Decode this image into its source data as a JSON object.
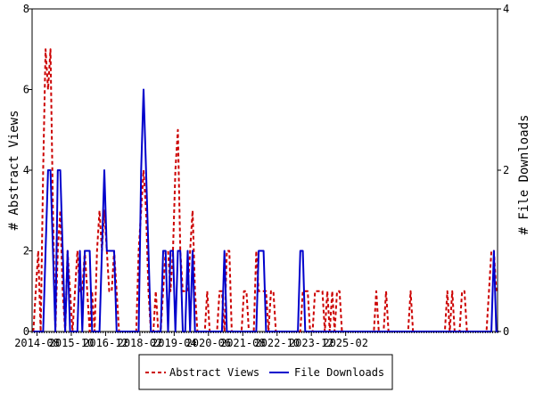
{
  "chart_data": {
    "type": "line",
    "title": "",
    "xlabel": "",
    "ylabel_left": "# Abstract Views",
    "ylabel_right": "# File Downloads",
    "ylim_left": [
      0,
      8
    ],
    "ylim_right": [
      0,
      4
    ],
    "yticks_left": [
      "0",
      "2",
      "4",
      "6",
      "8"
    ],
    "yticks_right": [
      "0",
      "2",
      "4"
    ],
    "x_tick_labels": [
      "2014-08",
      "2015-10",
      "2016-12",
      "2018-02",
      "2019-04",
      "2020-06",
      "2021-08",
      "2022-10",
      "2023-12",
      "2025-02"
    ],
    "x_start": "2014-06",
    "legend_position": "bottom",
    "colors": {
      "abstract_views": "#cc0000",
      "file_downloads": "#0000cc"
    },
    "series": [
      {
        "name": "Abstract Views",
        "axis": "left",
        "style": "dashed",
        "values": [
          0,
          1,
          2,
          0,
          4,
          7,
          6,
          7,
          3,
          0,
          2,
          3,
          1,
          0,
          2,
          1,
          0,
          1,
          2,
          1,
          1,
          2,
          1,
          0,
          1,
          0,
          2,
          3,
          2,
          3,
          2,
          1,
          1,
          2,
          1,
          0,
          0,
          0,
          0,
          0,
          0,
          0,
          0,
          2,
          3,
          4,
          3,
          1,
          0,
          0,
          1,
          0,
          0,
          1,
          2,
          2,
          1,
          2,
          4,
          5,
          2,
          1,
          1,
          1,
          2,
          3,
          1,
          0,
          0,
          0,
          0,
          1,
          0,
          0,
          0,
          0,
          1,
          1,
          0,
          2,
          2,
          0,
          0,
          0,
          0,
          0,
          1,
          1,
          0,
          0,
          0,
          2,
          1,
          1,
          1,
          1,
          0,
          1,
          1,
          0,
          0,
          0,
          0,
          0,
          0,
          0,
          0,
          0,
          0,
          0,
          1,
          1,
          1,
          0,
          0,
          1,
          1,
          1,
          1,
          0,
          1,
          0,
          1,
          0,
          1,
          1,
          0,
          0,
          0,
          0,
          0,
          0,
          0,
          0,
          0,
          0,
          0,
          0,
          0,
          0,
          1,
          0,
          0,
          0,
          1,
          0,
          0,
          0,
          0,
          0,
          0,
          0,
          0,
          0,
          1,
          0,
          0,
          0,
          0,
          0,
          0,
          0,
          0,
          0,
          0,
          0,
          0,
          0,
          0,
          1,
          0,
          1,
          0,
          0,
          0,
          1,
          1,
          0,
          0,
          0,
          0,
          0,
          0,
          0,
          0,
          0,
          1,
          2,
          2,
          1
        ]
      },
      {
        "name": "File Downloads",
        "axis": "right",
        "style": "solid",
        "values": [
          0,
          0,
          0,
          0,
          0,
          1,
          2,
          2,
          1,
          0,
          2,
          2,
          1,
          0,
          1,
          0,
          0,
          0,
          0,
          1,
          0,
          1,
          1,
          1,
          0,
          0,
          0,
          0,
          1,
          2,
          1,
          1,
          1,
          1,
          0,
          0,
          0,
          0,
          0,
          0,
          0,
          0,
          0,
          0,
          2,
          3,
          2,
          1,
          0,
          0,
          0,
          0,
          0,
          1,
          1,
          0,
          1,
          1,
          0,
          1,
          1,
          0,
          0,
          1,
          0,
          1,
          0,
          0,
          0,
          0,
          0,
          0,
          0,
          0,
          0,
          0,
          0,
          0,
          1,
          0,
          0,
          0,
          0,
          0,
          0,
          0,
          0,
          0,
          0,
          0,
          0,
          0,
          1,
          1,
          1,
          0,
          0,
          0,
          0,
          0,
          0,
          0,
          0,
          0,
          0,
          0,
          0,
          0,
          0,
          1,
          1,
          0,
          0,
          0,
          0,
          0,
          0,
          0,
          0,
          0,
          0,
          0,
          0,
          0,
          0,
          0,
          0,
          0,
          0,
          0,
          0,
          0,
          0,
          0,
          0,
          0,
          0,
          0,
          0,
          0,
          0,
          0,
          0,
          0,
          0,
          0,
          0,
          0,
          0,
          0,
          0,
          0,
          0,
          0,
          0,
          0,
          0,
          0,
          0,
          0,
          0,
          0,
          0,
          0,
          0,
          0,
          0,
          0,
          0,
          0,
          0,
          0,
          0,
          0,
          0,
          0,
          0,
          0,
          0,
          0,
          0,
          0,
          0,
          0,
          0,
          0,
          0,
          0,
          1,
          0,
          0
        ]
      }
    ]
  }
}
